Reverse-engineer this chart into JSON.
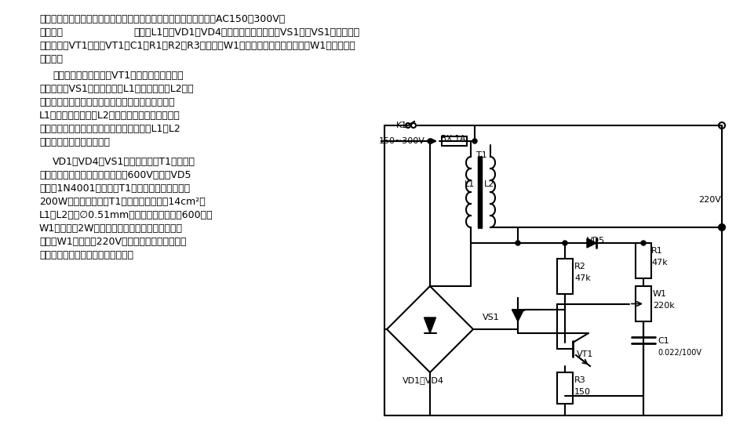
{
  "title_line1": "本稳压器电路简单，没有触点，电压调整准确快捷，适用范围很宽：AC150～300V。",
  "title_line2_part1": "电路如图",
  "title_line2_part2": "市电经L1进入VD1～VD4的全桥整流加在晶闸管VS1上，VS1的导通角受",
  "title_line3": "单结晶体管VT1控制。VT1、C1、R1、R2、R3和电位器W1组成一个张弛振荡器，改变W1可以改变振",
  "title_line4": "荡周期。",
  "para1_line1": "当输入电压升高，加在VT1上的电压相应升高，",
  "para1_line2": "振荡加快，VS1导通角减小，L1上电压下降，L2上电",
  "para1_line3": "压下降，输出电压下降；反之，当输入电压降低时，",
  "para1_line4": "L1上的电压上升，经L2耦合后的电压也上升，这就",
  "para1_line5": "保持输出电压恒定。由于采用了全桥整流，L1和L2",
  "para1_line6": "上的电压都保持了正弦波。",
  "para2_line1": "VD1～VD4和VS1的电流应根据T1的容量选",
  "para2_line2": "定，且要有较大的余量，耐压均在600V以上。VD5",
  "para2_line3": "可选用1N4001，变压器T1需自制，若制作容量为",
  "para2_line4": "200W左右的稳压器，T1的铁心截面积约为14cm²，",
  "para2_line5": "L1、L2均用∅0.51mm的高强度漆包线各绕600匝。",
  "para2_line6": "W1最好选用2W以上的电位器。接好电路后，调整",
  "para2_line7": "电位器W1使输出为220V，如果不能正常调节就要",
  "para2_line8": "检查线路有无接错或元件是否正常。",
  "bg_color": "#ffffff",
  "text_color": "#000000",
  "line_color": "#000000",
  "font_size_main": 9,
  "font_size_bold": 10
}
